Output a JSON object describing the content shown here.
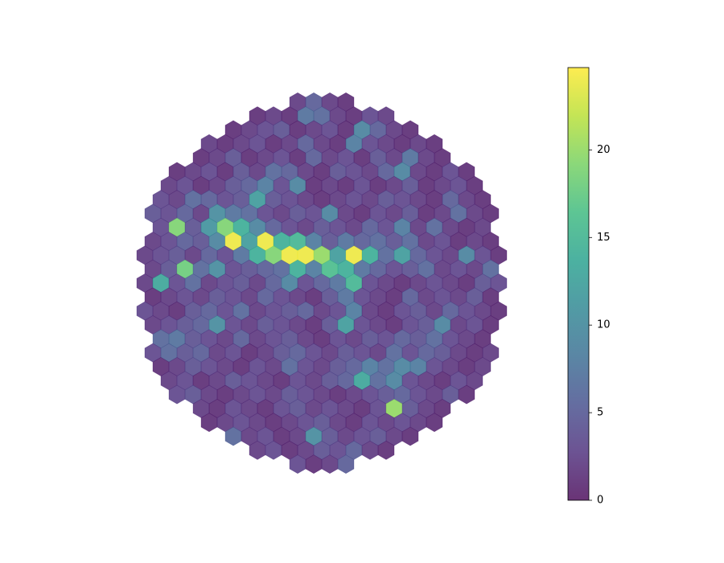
{
  "chart_data": {
    "type": "hexcamera",
    "cmap": "viridis",
    "alpha": 0.8,
    "rows": [
      [
        2,
        5,
        2,
        1
      ],
      [
        1,
        2,
        1,
        7,
        6,
        2,
        1,
        3,
        2
      ],
      [
        1,
        2,
        3,
        4,
        1,
        2,
        3,
        1,
        9,
        5,
        2,
        1
      ],
      [
        2,
        1,
        2,
        3,
        1,
        2,
        5,
        2,
        1,
        8,
        3,
        2,
        1,
        2,
        1
      ],
      [
        1,
        2,
        4,
        1,
        2,
        3,
        1,
        5,
        2,
        3,
        1,
        4,
        2,
        7,
        2,
        1
      ],
      [
        1,
        2,
        3,
        1,
        4,
        2,
        6,
        5,
        2,
        1,
        4,
        3,
        2,
        5,
        9,
        2,
        1,
        3,
        1
      ],
      [
        2,
        3,
        1,
        2,
        4,
        5,
        8,
        3,
        9,
        1,
        2,
        1,
        3,
        1,
        2,
        4,
        1,
        2,
        3,
        1
      ],
      [
        3,
        2,
        6,
        5,
        3,
        4,
        12,
        4,
        3,
        2,
        1,
        2,
        3,
        2,
        4,
        3,
        2,
        1,
        5,
        2,
        1
      ],
      [
        4,
        3,
        5,
        2,
        10,
        7,
        6,
        3,
        2,
        4,
        3,
        9,
        2,
        1,
        3,
        2,
        4,
        1,
        2,
        6,
        2,
        1
      ],
      [
        3,
        19,
        4,
        11,
        19,
        14,
        9,
        5,
        3,
        2,
        4,
        3,
        2,
        5,
        3,
        8,
        2,
        6,
        2,
        1,
        2
      ],
      [
        2,
        3,
        5,
        4,
        9,
        24,
        12,
        24,
        14,
        15,
        8,
        4,
        7,
        5,
        6,
        4,
        6,
        2,
        3,
        1,
        2,
        1
      ],
      [
        2,
        3,
        4,
        2,
        5,
        3,
        7,
        14,
        19,
        24,
        24,
        20,
        12,
        24,
        14,
        6,
        12,
        5,
        3,
        2,
        9,
        3,
        1
      ],
      [
        2,
        4,
        18,
        6,
        10,
        3,
        4,
        5,
        6,
        14,
        8,
        16,
        14,
        7,
        5,
        3,
        4,
        6,
        2,
        3,
        2,
        6
      ],
      [
        2,
        13,
        3,
        6,
        2,
        3,
        4,
        2,
        5,
        9,
        3,
        5,
        7,
        15,
        3,
        2,
        1,
        2,
        3,
        2,
        1,
        4,
        3
      ],
      [
        1,
        2,
        3,
        2,
        4,
        3,
        2,
        5,
        3,
        2,
        1,
        4,
        7,
        3,
        2,
        1,
        5,
        2,
        3,
        2,
        4,
        1
      ],
      [
        3,
        2,
        1,
        4,
        5,
        3,
        6,
        2,
        3,
        4,
        5,
        2,
        3,
        8,
        2,
        1,
        3,
        4,
        2,
        5,
        3,
        2,
        1
      ],
      [
        2,
        3,
        4,
        5,
        10,
        3,
        2,
        4,
        3,
        2,
        1,
        4,
        12,
        3,
        2,
        1,
        3,
        4,
        9,
        2,
        3,
        1
      ],
      [
        6,
        7,
        4,
        3,
        2,
        5,
        2,
        3,
        4,
        2,
        1,
        3,
        2,
        4,
        3,
        5,
        4,
        6,
        3,
        2,
        1
      ],
      [
        3,
        6,
        4,
        5,
        2,
        3,
        1,
        2,
        4,
        5,
        3,
        2,
        4,
        3,
        2,
        6,
        3,
        5,
        4,
        2,
        1,
        2
      ],
      [
        1,
        2,
        4,
        3,
        2,
        1,
        3,
        2,
        6,
        3,
        2,
        4,
        5,
        8,
        6,
        9,
        8,
        3,
        2,
        1,
        2
      ],
      [
        2,
        3,
        1,
        2,
        4,
        3,
        2,
        1,
        3,
        2,
        4,
        5,
        13,
        6,
        9,
        3,
        2,
        1,
        3,
        2
      ],
      [
        3,
        4,
        2,
        1,
        2,
        3,
        2,
        4,
        3,
        2,
        1,
        2,
        3,
        4,
        5,
        3,
        2,
        4,
        1
      ],
      [
        2,
        1,
        3,
        2,
        1,
        3,
        4,
        2,
        3,
        2,
        1,
        3,
        20,
        4,
        2,
        1
      ],
      [
        1,
        2,
        3,
        2,
        1,
        2,
        3,
        4,
        2,
        1,
        3,
        2,
        3,
        2,
        1
      ],
      [
        6,
        2,
        3,
        1,
        2,
        10,
        4,
        2,
        3,
        4,
        2,
        1
      ],
      [
        2,
        3,
        1,
        2,
        4,
        3,
        5,
        2,
        1
      ],
      [
        3,
        1,
        2,
        5
      ]
    ],
    "colorbar": {
      "lim": [
        0,
        24.7
      ],
      "ticks": [
        0,
        5,
        10,
        15,
        20
      ]
    }
  }
}
